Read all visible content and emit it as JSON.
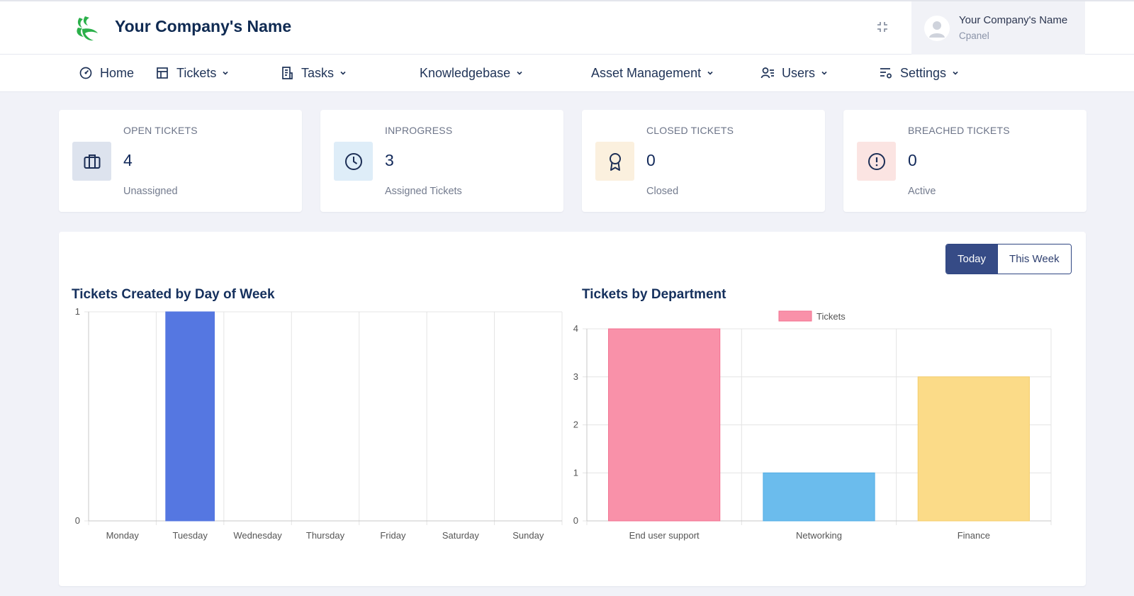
{
  "header": {
    "company_name": "Your Company's Name",
    "user": {
      "name": "Your Company's Name",
      "role": "Cpanel"
    }
  },
  "nav": [
    {
      "label": "Home",
      "icon": "dashboard-icon",
      "dropdown": false
    },
    {
      "label": "Tickets",
      "icon": "table-icon",
      "dropdown": true
    },
    {
      "label": "Tasks",
      "icon": "list-icon",
      "dropdown": true
    },
    {
      "label": "Knowledgebase",
      "icon": "",
      "dropdown": true
    },
    {
      "label": "Asset Management",
      "icon": "",
      "dropdown": true
    },
    {
      "label": "Users",
      "icon": "users-icon",
      "dropdown": true
    },
    {
      "label": "Settings",
      "icon": "settings-icon",
      "dropdown": true
    }
  ],
  "stats": [
    {
      "label": "OPEN TICKETS",
      "value": "4",
      "sub": "Unassigned",
      "icon": "briefcase-icon",
      "icon_bg": "#dde3ee"
    },
    {
      "label": "INPROGRESS",
      "value": "3",
      "sub": "Assigned Tickets",
      "icon": "clock-icon",
      "icon_bg": "#deedf8"
    },
    {
      "label": "CLOSED TICKETS",
      "value": "0",
      "sub": "Closed",
      "icon": "award-icon",
      "icon_bg": "#fbf0de"
    },
    {
      "label": "BREACHED TICKETS",
      "value": "0",
      "sub": "Active",
      "icon": "alert-circle-icon",
      "icon_bg": "#fbe4e2"
    }
  ],
  "toggle": {
    "today": "Today",
    "this_week": "This Week",
    "selected": "Today"
  },
  "chart_data": [
    {
      "type": "bar",
      "title": "Tickets Created by Day of Week",
      "categories": [
        "Monday",
        "Tuesday",
        "Wednesday",
        "Thursday",
        "Friday",
        "Saturday",
        "Sunday"
      ],
      "values": [
        0,
        1,
        0,
        0,
        0,
        0,
        0
      ],
      "ylim": [
        0,
        1
      ],
      "yticks": [
        0,
        1
      ],
      "color": "#5577e1",
      "legend": null,
      "grid": true
    },
    {
      "type": "bar",
      "title": "Tickets by Department",
      "categories": [
        "End user support",
        "Networking",
        "Finance"
      ],
      "series": [
        {
          "name": "Tickets",
          "values": [
            4,
            1,
            3
          ]
        }
      ],
      "colors": [
        "#f991a9",
        "#6bbced",
        "#fbdb88"
      ],
      "borders": [
        "#f2708f",
        "#52aee6",
        "#f5cd6a"
      ],
      "legend_color": "#f991a9",
      "ylim": [
        0,
        4
      ],
      "yticks": [
        0,
        1,
        2,
        3,
        4
      ],
      "legend": "top-center",
      "grid": true
    }
  ]
}
